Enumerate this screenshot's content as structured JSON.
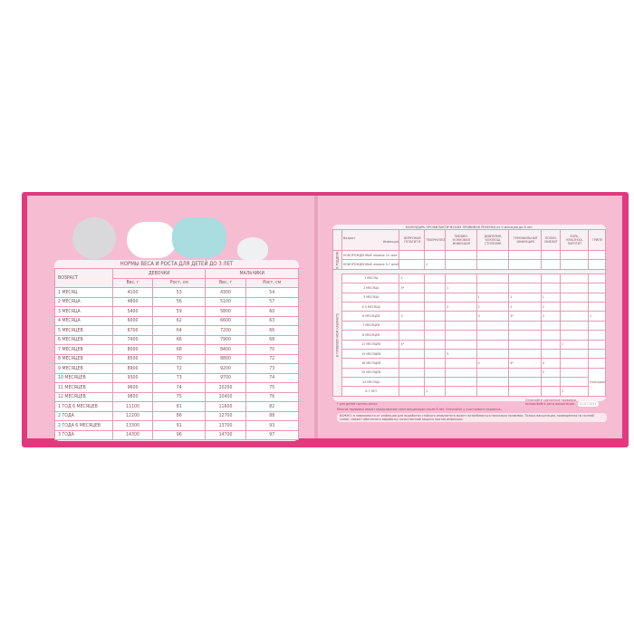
{
  "left": {
    "title": "НОРМЫ ВЕСА И РОСТА ДЛЯ ДЕТЕЙ ДО 3 ЛЕТ",
    "col_age": "ВОЗРАСТ",
    "col_girls": "ДЕВОЧКИ",
    "col_boys": "МАЛЬЧИКИ",
    "col_weight": "Вес, г",
    "col_height": "Рост, см",
    "rows": [
      [
        "1 МЕСЯЦ",
        "4100",
        "53",
        "4300",
        "54"
      ],
      [
        "2 МЕСЯЦА",
        "4800",
        "56",
        "5100",
        "57"
      ],
      [
        "3 МЕСЯЦА",
        "5400",
        "59",
        "5800",
        "60"
      ],
      [
        "4 МЕСЯЦА",
        "6000",
        "62",
        "6600",
        "63"
      ],
      [
        "5 МЕСЯЦЕВ",
        "6700",
        "64",
        "7200",
        "66"
      ],
      [
        "6 МЕСЯЦЕВ",
        "7400",
        "66",
        "7900",
        "68"
      ],
      [
        "7 МЕСЯЦЕВ",
        "8000",
        "68",
        "8400",
        "70"
      ],
      [
        "8 МЕСЯЦЕВ",
        "8500",
        "70",
        "8800",
        "72"
      ],
      [
        "9 МЕСЯЦЕВ",
        "8900",
        "72",
        "9200",
        "73"
      ],
      [
        "10 МЕСЯЦЕВ",
        "9300",
        "73",
        "9700",
        "74"
      ],
      [
        "11 МЕСЯЦЕВ",
        "9600",
        "74",
        "10200",
        "75"
      ],
      [
        "12 МЕСЯЦЕВ",
        "9800",
        "75",
        "10400",
        "76"
      ],
      [
        "1 ГОД 6 МЕСЯЦЕВ",
        "11100",
        "81",
        "11600",
        "82"
      ],
      [
        "2 ГОДА",
        "12200",
        "86",
        "12700",
        "88"
      ],
      [
        "2 ГОДА 6 МЕСЯЦЕВ",
        "13300",
        "91",
        "13700",
        "93"
      ],
      [
        "3 ГОДА",
        "14300",
        "96",
        "14700",
        "97"
      ]
    ]
  },
  "right": {
    "title": "КАЛЕНДАРЬ ПРОФИЛАКТИЧЕСКИХ ПРИВИВОК РЕБЕНКА от 0 месяцев до 6 лет",
    "corner_age": "Возраст",
    "corner_infection": "Инфекция",
    "vaccines": [
      "ВИРУСНЫЙ ГЕПАТИТ В",
      "ТУБЕРКУЛЕЗ",
      "ПНЕВМО-КОККОВАЯ ИНФЕКЦИЯ",
      "ДИФТЕРИЯ, КОКЛЮШ, СТОЛБНЯК",
      "ГЕМОФИЛЬНАЯ ИНФЕКЦИЯ",
      "ПОЛИО-МИЕЛИТ",
      "КОРЬ, КРАСНУХА, ПАРОТИТ",
      "ГРИПП"
    ],
    "group_hospital": "В РОДДОМЕ",
    "group_clinic": "В ПРИВИВОЧНОМ КАБИНЕТЕ",
    "hospital_rows": [
      {
        "age": "НОВОРОЖДЕННЫЕ первые 24 часа",
        "marks": [
          "",
          "",
          "",
          "",
          "",
          "",
          "",
          ""
        ]
      },
      {
        "age": "НОВОРОЖДЕННЫЕ первые 3-7 дней",
        "marks": [
          "",
          "1",
          "",
          "",
          "",
          "",
          "",
          ""
        ]
      }
    ],
    "clinic_rows": [
      {
        "age": "1 МЕСЯЦ",
        "marks": [
          "2",
          "",
          "",
          "",
          "",
          "",
          "",
          ""
        ]
      },
      {
        "age": "2 МЕСЯЦА",
        "marks": [
          "3*",
          "",
          "1",
          "",
          "",
          "",
          "",
          ""
        ]
      },
      {
        "age": "3 МЕСЯЦА",
        "marks": [
          "",
          "",
          "",
          "1",
          "1",
          "1",
          "",
          ""
        ]
      },
      {
        "age": "4,5 МЕСЯЦА",
        "marks": [
          "",
          "",
          "2",
          "2",
          "2",
          "2",
          "",
          ""
        ]
      },
      {
        "age": "6 МЕСЯЦЕВ",
        "marks": [
          "3",
          "",
          "",
          "3",
          "3*",
          "3",
          "",
          "1"
        ]
      },
      {
        "age": "7 МЕСЯЦЕВ",
        "marks": [
          "",
          "",
          "",
          "",
          "",
          "",
          "",
          ""
        ]
      },
      {
        "age": "8 МЕСЯЦЕВ",
        "marks": [
          "",
          "",
          "",
          "",
          "",
          "",
          "",
          ""
        ]
      },
      {
        "age": "12 МЕСЯЦЕВ",
        "marks": [
          "4*",
          "",
          "",
          "",
          "",
          "",
          "1",
          ""
        ]
      },
      {
        "age": "15 МЕСЯЦЕВ",
        "marks": [
          "",
          "",
          "3",
          "",
          "",
          "",
          "",
          ""
        ]
      },
      {
        "age": "18 МЕСЯЦЕВ",
        "marks": [
          "",
          "",
          "",
          "4",
          "4*",
          "4",
          "",
          ""
        ]
      },
      {
        "age": "20 МЕСЯЦЕВ",
        "marks": [
          "",
          "",
          "",
          "",
          "",
          "5",
          "",
          ""
        ]
      },
      {
        "age": "24 МЕСЯЦА",
        "marks": [
          "",
          "",
          "",
          "",
          "",
          "",
          "",
          ""
        ]
      },
      {
        "age": "6-7 ЛЕТ",
        "marks": [
          "",
          "2",
          "",
          "",
          "",
          "",
          "2",
          ""
        ]
      }
    ],
    "flu_annual": "Ежегодно",
    "note_risk": "* для детей группы риска",
    "note_continue": "Многие прививки имеют продолжение схем вакцинации после 6 лет. Уточняйте у участкового педиатра.",
    "note_mark": "Отмечайте сделанные прививки, вкладывайте даты вакцинации.",
    "date_badge": "21.07.2017",
    "important": "ВАЖНО: в зависимости от инфекции для выработки стойкого иммунитета может потребоваться несколько прививок. Только вакцинация, проведенная по полной схеме, сможет обеспечить выработку качественной защиты против инфекции."
  }
}
